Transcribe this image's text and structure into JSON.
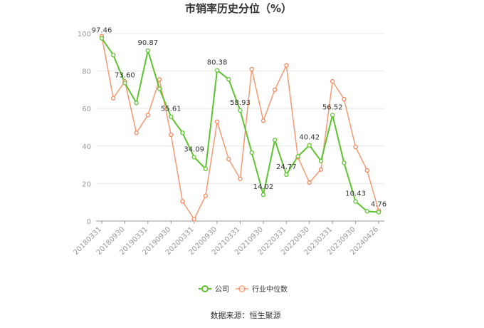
{
  "chart_data": {
    "type": "line",
    "title": "市销率历史分位（%）",
    "xlabel": "",
    "ylabel": "",
    "ylim": [
      0,
      100
    ],
    "yticks": [
      "0",
      "20",
      "40",
      "60",
      "80",
      "100"
    ],
    "xticks": [
      "20180331",
      "20180930",
      "20190331",
      "20190930",
      "20200331",
      "20200930",
      "20210331",
      "20210930",
      "20220331",
      "20220930",
      "20230331",
      "20230930",
      "20240426"
    ],
    "grid": true,
    "legend_position": "bottom",
    "series": [
      {
        "name": "公司",
        "color": "#5DC42F",
        "values": [
          97.46,
          88.5,
          73.6,
          63.0,
          90.87,
          70.5,
          55.61,
          47.0,
          34.09,
          27.8,
          80.38,
          75.6,
          58.93,
          36.5,
          14.02,
          43.2,
          24.77,
          34.5,
          40.42,
          32.0,
          56.52,
          31.0,
          10.43,
          5.2,
          4.76
        ]
      },
      {
        "name": "行业中位数",
        "color": "#F4875A",
        "values": [
          98.5,
          65.5,
          74.5,
          47.0,
          56.5,
          75.5,
          46.0,
          10.5,
          1.0,
          13.5,
          53.0,
          33.0,
          22.5,
          81.0,
          53.5,
          70.0,
          83.0,
          34.0,
          20.5,
          27.5,
          74.5,
          65.0,
          39.5,
          27.0,
          5.5
        ]
      }
    ],
    "data_labels": [
      {
        "series": 0,
        "index": 0,
        "text": "97.46"
      },
      {
        "series": 0,
        "index": 2,
        "text": "73.60"
      },
      {
        "series": 0,
        "index": 4,
        "text": "90.87"
      },
      {
        "series": 0,
        "index": 6,
        "text": "55.61"
      },
      {
        "series": 0,
        "index": 8,
        "text": "34.09"
      },
      {
        "series": 0,
        "index": 10,
        "text": "80.38"
      },
      {
        "series": 0,
        "index": 12,
        "text": "58.93"
      },
      {
        "series": 0,
        "index": 14,
        "text": "14.02"
      },
      {
        "series": 0,
        "index": 16,
        "text": "24.77"
      },
      {
        "series": 0,
        "index": 18,
        "text": "40.42"
      },
      {
        "series": 0,
        "index": 20,
        "text": "56.52"
      },
      {
        "series": 0,
        "index": 22,
        "text": "10.43"
      },
      {
        "series": 0,
        "index": 24,
        "text": "4.76"
      }
    ]
  },
  "legend": {
    "company_label": "公司",
    "industry_label": "行业中位数"
  },
  "footer": {
    "source_text": "数据来源：恒生聚源"
  }
}
